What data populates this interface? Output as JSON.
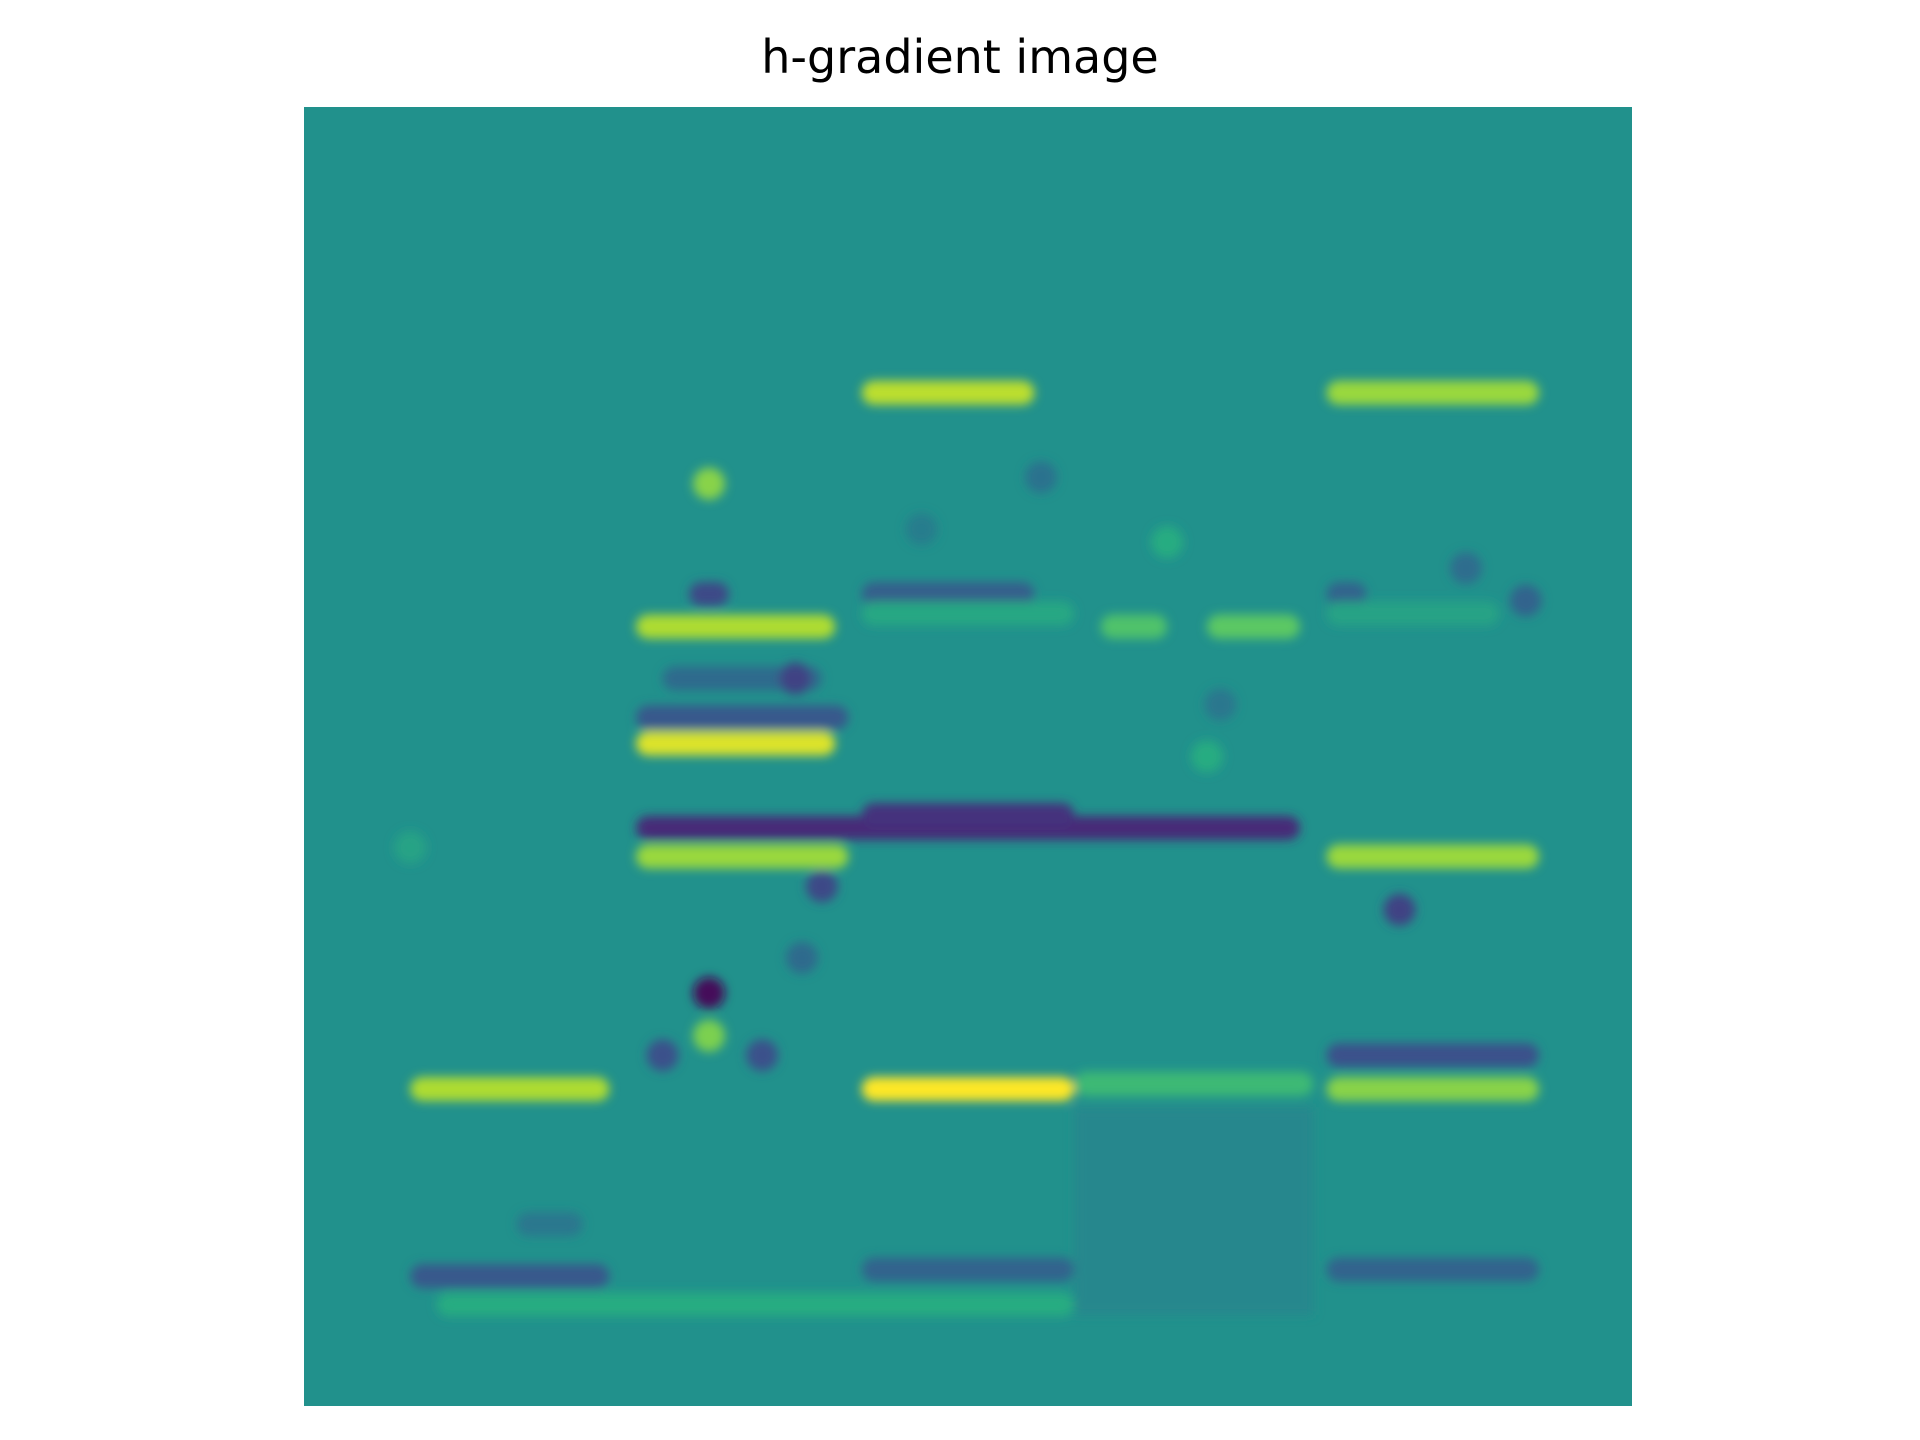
{
  "chart_data": {
    "type": "heatmap",
    "title": "h-gradient image",
    "colormap": "viridis",
    "axes_visible": false,
    "grid": false,
    "legend": "none",
    "background_value": 0.5,
    "colors": {
      "background": "#21918c",
      "low": "#440154",
      "high": "#fde725"
    },
    "features": [
      {
        "kind": "band",
        "x": [
          0.42,
          0.55
        ],
        "y": 0.22,
        "value": 0.9
      },
      {
        "kind": "band",
        "x": [
          0.77,
          0.93
        ],
        "y": 0.22,
        "value": 0.85
      },
      {
        "kind": "spot",
        "x": 0.305,
        "y": 0.29,
        "value": 0.82
      },
      {
        "kind": "spot",
        "x": 0.555,
        "y": 0.285,
        "value": 0.38
      },
      {
        "kind": "spot",
        "x": 0.465,
        "y": 0.325,
        "value": 0.42
      },
      {
        "kind": "spot",
        "x": 0.65,
        "y": 0.335,
        "value": 0.62
      },
      {
        "kind": "spot",
        "x": 0.875,
        "y": 0.355,
        "value": 0.36
      },
      {
        "kind": "band",
        "x": [
          0.29,
          0.32
        ],
        "y": 0.375,
        "value": 0.22
      },
      {
        "kind": "band",
        "x": [
          0.42,
          0.55
        ],
        "y": 0.375,
        "value": 0.3
      },
      {
        "kind": "band",
        "x": [
          0.77,
          0.8
        ],
        "y": 0.375,
        "value": 0.32
      },
      {
        "kind": "spot",
        "x": 0.92,
        "y": 0.38,
        "value": 0.32
      },
      {
        "kind": "band",
        "x": [
          0.25,
          0.4
        ],
        "y": 0.4,
        "value": 0.88
      },
      {
        "kind": "band",
        "x": [
          0.42,
          0.58
        ],
        "y": 0.39,
        "value": 0.6
      },
      {
        "kind": "band",
        "x": [
          0.6,
          0.65
        ],
        "y": 0.4,
        "value": 0.72
      },
      {
        "kind": "band",
        "x": [
          0.68,
          0.75
        ],
        "y": 0.4,
        "value": 0.75
      },
      {
        "kind": "band",
        "x": [
          0.77,
          0.9
        ],
        "y": 0.39,
        "value": 0.58
      },
      {
        "kind": "band",
        "x": [
          0.27,
          0.39
        ],
        "y": 0.44,
        "value": 0.35
      },
      {
        "kind": "spot",
        "x": 0.37,
        "y": 0.44,
        "value": 0.2
      },
      {
        "kind": "band",
        "x": [
          0.25,
          0.41
        ],
        "y": 0.47,
        "value": 0.28
      },
      {
        "kind": "band",
        "x": [
          0.25,
          0.4
        ],
        "y": 0.49,
        "value": 0.95
      },
      {
        "kind": "spot",
        "x": 0.69,
        "y": 0.46,
        "value": 0.4
      },
      {
        "kind": "spot",
        "x": 0.68,
        "y": 0.5,
        "value": 0.62
      },
      {
        "kind": "band",
        "x": [
          0.25,
          0.75
        ],
        "y": 0.555,
        "value": 0.12
      },
      {
        "kind": "band",
        "x": [
          0.42,
          0.58
        ],
        "y": 0.545,
        "value": 0.15
      },
      {
        "kind": "band",
        "x": [
          0.25,
          0.41
        ],
        "y": 0.577,
        "value": 0.85
      },
      {
        "kind": "band",
        "x": [
          0.77,
          0.93
        ],
        "y": 0.577,
        "value": 0.85
      },
      {
        "kind": "spot",
        "x": 0.08,
        "y": 0.57,
        "value": 0.58
      },
      {
        "kind": "spot",
        "x": 0.39,
        "y": 0.6,
        "value": 0.22
      },
      {
        "kind": "spot",
        "x": 0.825,
        "y": 0.618,
        "value": 0.2
      },
      {
        "kind": "spot",
        "x": 0.375,
        "y": 0.655,
        "value": 0.35
      },
      {
        "kind": "spot",
        "x": 0.305,
        "y": 0.682,
        "value": 0.02
      },
      {
        "kind": "spot",
        "x": 0.305,
        "y": 0.715,
        "value": 0.8
      },
      {
        "kind": "spot",
        "x": 0.27,
        "y": 0.73,
        "value": 0.25
      },
      {
        "kind": "spot",
        "x": 0.345,
        "y": 0.73,
        "value": 0.25
      },
      {
        "kind": "band",
        "x": [
          0.77,
          0.93
        ],
        "y": 0.73,
        "value": 0.25
      },
      {
        "kind": "band",
        "x": [
          0.08,
          0.23
        ],
        "y": 0.756,
        "value": 0.88
      },
      {
        "kind": "band",
        "x": [
          0.42,
          0.58
        ],
        "y": 0.756,
        "value": 1.0
      },
      {
        "kind": "band",
        "x": [
          0.58,
          0.76
        ],
        "y": 0.752,
        "value": 0.68
      },
      {
        "kind": "band",
        "x": [
          0.77,
          0.93
        ],
        "y": 0.756,
        "value": 0.82
      },
      {
        "kind": "band",
        "x": [
          0.58,
          0.76
        ],
        "y": [
          0.77,
          0.93
        ],
        "value": 0.46
      },
      {
        "kind": "band",
        "x": [
          0.16,
          0.21
        ],
        "y": 0.86,
        "value": 0.4
      },
      {
        "kind": "band",
        "x": [
          0.08,
          0.23
        ],
        "y": 0.9,
        "value": 0.28
      },
      {
        "kind": "band",
        "x": [
          0.42,
          0.58
        ],
        "y": 0.895,
        "value": 0.32
      },
      {
        "kind": "band",
        "x": [
          0.77,
          0.93
        ],
        "y": 0.895,
        "value": 0.32
      },
      {
        "kind": "band",
        "x": [
          0.1,
          0.58
        ],
        "y": 0.922,
        "value": 0.62
      }
    ]
  }
}
